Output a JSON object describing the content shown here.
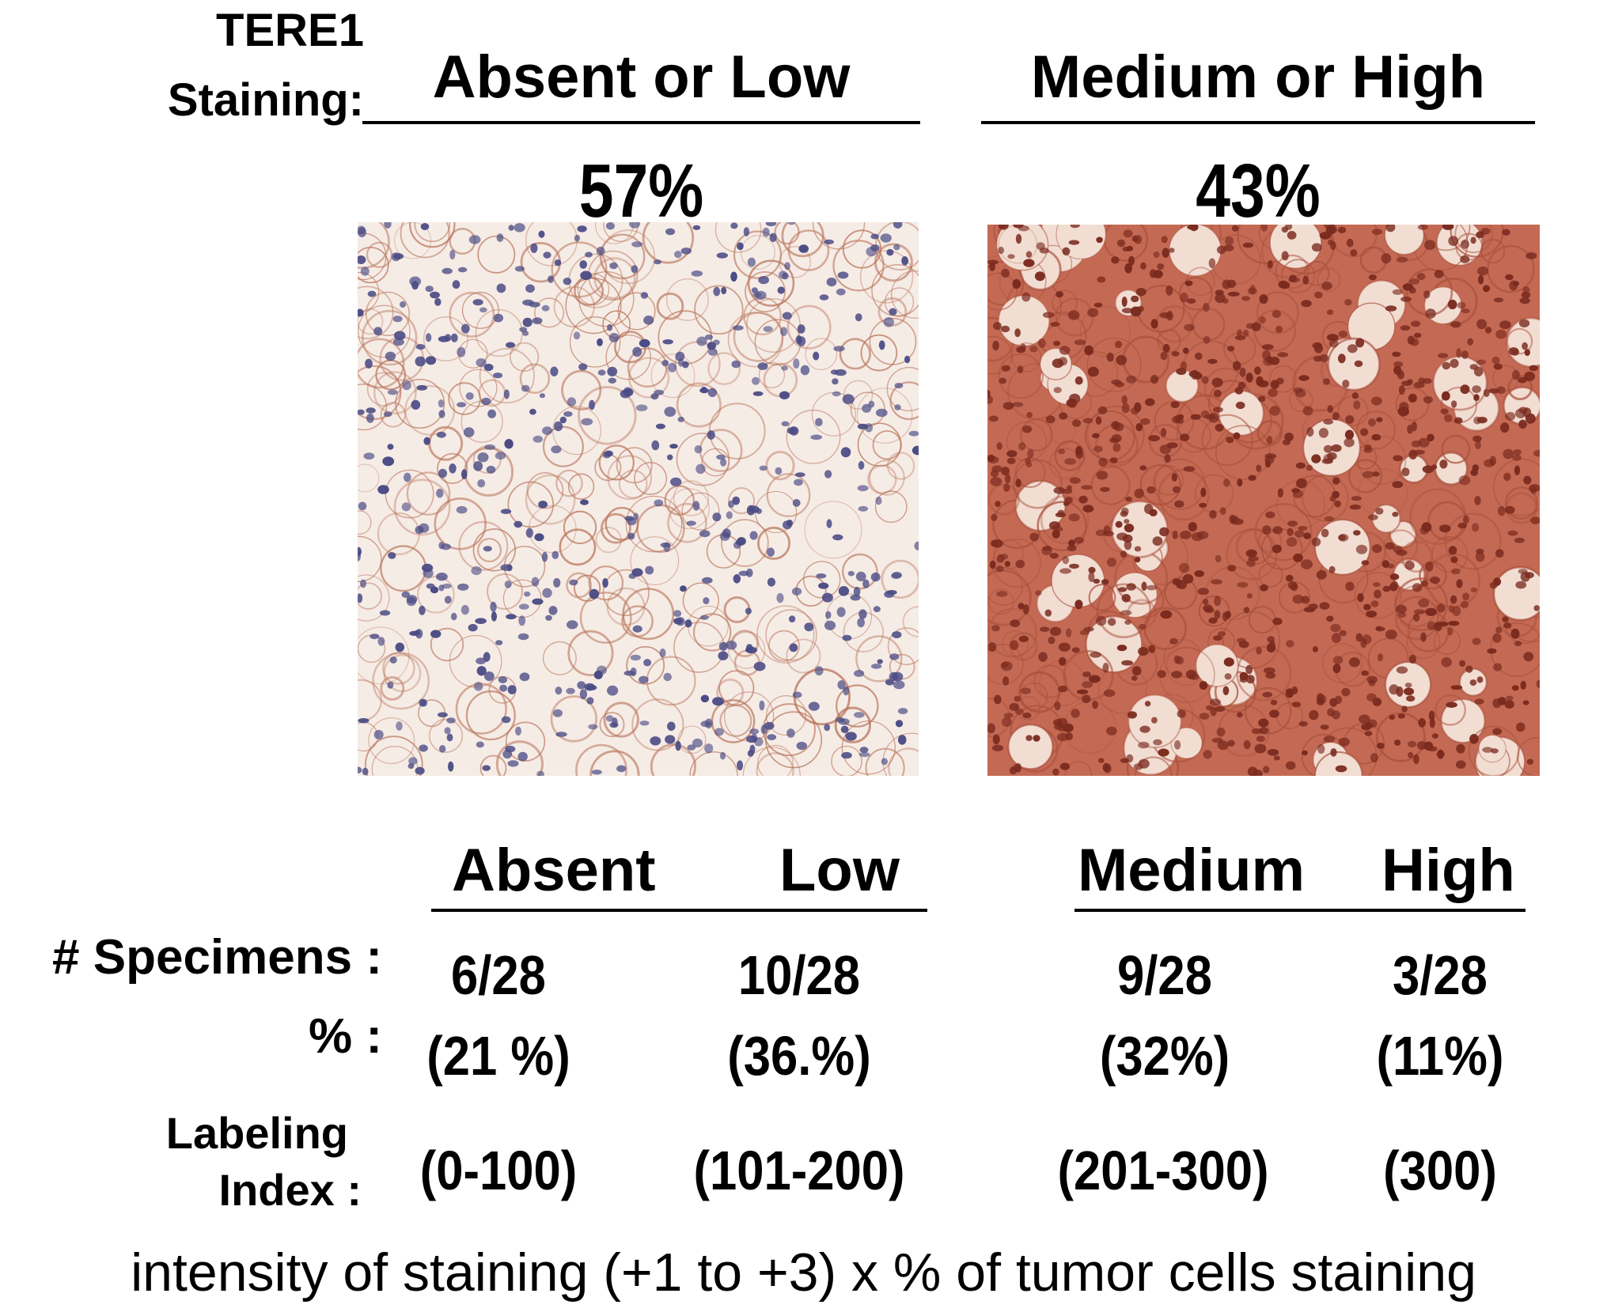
{
  "header": {
    "title_line1": "TERE1",
    "title_line2": "Staining:",
    "groups": [
      {
        "label": "Absent  or  Low",
        "percent": "57%"
      },
      {
        "label": "Medium  or  High",
        "percent": "43%"
      }
    ]
  },
  "panels": [
    {
      "name": "absent-or-low-micrograph",
      "background": "#f6ece6",
      "cell_color": "#4b4c85",
      "stain_color": "#b8745a"
    },
    {
      "name": "medium-or-high-micrograph",
      "background": "#c46a54",
      "cell_color": "#7a2a1e",
      "stain_color": "#a8503c"
    }
  ],
  "table": {
    "columns": [
      "Absent",
      "Low",
      "Medium",
      "High"
    ],
    "rows": [
      {
        "label": "# Specimens :",
        "values": [
          "6/28",
          "10/28",
          "9/28",
          "3/28"
        ]
      },
      {
        "label": "% :",
        "values": [
          "(21 %)",
          "(36.%)",
          "(32%)",
          "(11%)"
        ]
      },
      {
        "label_line1": "Labeling",
        "label_line2": "Index :",
        "values": [
          "(0-100)",
          "(101-200)",
          "(201-300)",
          "(300)"
        ]
      }
    ]
  },
  "footer": "intensity of staining (+1 to +3)  x % of tumor cells staining"
}
